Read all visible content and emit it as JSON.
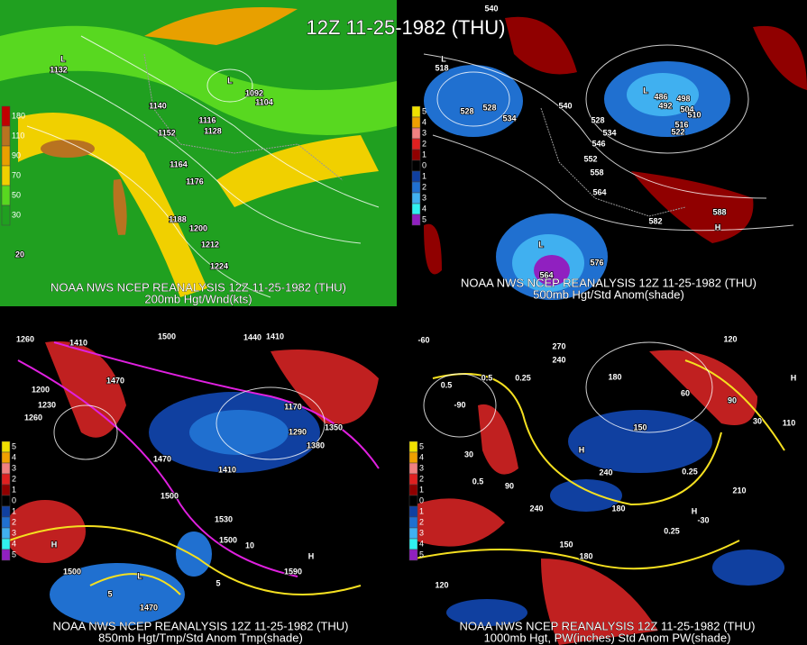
{
  "title": "12Z 11-25-1982 (THU)",
  "panels": [
    {
      "caption": [
        "NOAA NWS NCEP REANALYSIS 12Z 11-25-1982 (THU)",
        "200mb Hgt/Wnd(kts)"
      ],
      "legend": [
        {
          "label": "180",
          "color": "#c00000"
        },
        {
          "label": "110",
          "color": "#b87320"
        },
        {
          "label": "90",
          "color": "#e8a000"
        },
        {
          "label": "70",
          "color": "#f0d000"
        },
        {
          "label": "50",
          "color": "#58d820"
        },
        {
          "label": "30",
          "color": "#20a020"
        }
      ],
      "labels": [
        "L",
        "1132",
        "L",
        "1092",
        "1104",
        "1140",
        "1116",
        "1128",
        "1152",
        "1164",
        "1176",
        "1188",
        "1200",
        "1212",
        "1224",
        "20"
      ]
    },
    {
      "caption": [
        "NOAA NWS NCEP REANALYSIS 12Z 11-25-1982 (THU)",
        "500mb Hgt/Std Anom(shade)"
      ],
      "legend": [
        {
          "label": "5",
          "color": "#f0e000"
        },
        {
          "label": "4",
          "color": "#f0a000"
        },
        {
          "label": "3",
          "color": "#f08080"
        },
        {
          "label": "2",
          "color": "#e02020"
        },
        {
          "label": "1",
          "color": "#900000"
        },
        {
          "label": "0",
          "color": "#000000"
        },
        {
          "label": "1",
          "color": "#1040a0"
        },
        {
          "label": "2",
          "color": "#2070d0"
        },
        {
          "label": "3",
          "color": "#40b0f0"
        },
        {
          "label": "4",
          "color": "#30f0f0"
        },
        {
          "label": "5",
          "color": "#9020c0"
        }
      ],
      "labels": [
        "540",
        "L",
        "518",
        "528",
        "528",
        "534",
        "540",
        "528",
        "534",
        "546",
        "552",
        "558",
        "564",
        "582",
        "588",
        "H",
        "L",
        "486",
        "498",
        "492",
        "504",
        "510",
        "516",
        "522",
        "576",
        "564",
        "L"
      ]
    },
    {
      "caption": [
        "NOAA NWS NCEP REANALYSIS 12Z 11-25-1982 (THU)",
        "850mb Hgt/Tmp/Std Anom Tmp(shade)"
      ],
      "legend": [
        {
          "label": "5",
          "color": "#f0e000"
        },
        {
          "label": "4",
          "color": "#f0a000"
        },
        {
          "label": "3",
          "color": "#f08080"
        },
        {
          "label": "2",
          "color": "#e02020"
        },
        {
          "label": "1",
          "color": "#900000"
        },
        {
          "label": "0",
          "color": "#000000"
        },
        {
          "label": "1",
          "color": "#1040a0"
        },
        {
          "label": "2",
          "color": "#2070d0"
        },
        {
          "label": "3",
          "color": "#40b0f0"
        },
        {
          "label": "4",
          "color": "#30f0f0"
        },
        {
          "label": "5",
          "color": "#9020c0"
        }
      ],
      "labels": [
        "1260",
        "1410",
        "1470",
        "1500",
        "1440",
        "1410",
        "1200",
        "1260",
        "1230",
        "1470",
        "1410",
        "1500",
        "1530",
        "1500",
        "1380",
        "1290",
        "1350",
        "1170",
        "1500",
        "1470",
        "1590",
        "H",
        "H",
        "L",
        "10",
        "5",
        "5"
      ]
    },
    {
      "caption": [
        "NOAA NWS NCEP REANALYSIS 12Z 11-25-1982 (THU)",
        "1000mb Hgt, PW(inches) Std Anom PW(shade)"
      ],
      "legend": [
        {
          "label": "5",
          "color": "#f0e000"
        },
        {
          "label": "4",
          "color": "#f0a000"
        },
        {
          "label": "3",
          "color": "#f08080"
        },
        {
          "label": "2",
          "color": "#e02020"
        },
        {
          "label": "1",
          "color": "#900000"
        },
        {
          "label": "0",
          "color": "#000000"
        },
        {
          "label": "1",
          "color": "#1040a0"
        },
        {
          "label": "2",
          "color": "#2070d0"
        },
        {
          "label": "3",
          "color": "#40b0f0"
        },
        {
          "label": "4",
          "color": "#30f0f0"
        },
        {
          "label": "5",
          "color": "#9020c0"
        }
      ],
      "labels": [
        "-60",
        "270",
        "240",
        "120",
        "180",
        "0.5",
        "0.5",
        "0.25",
        "-90",
        "30",
        "150",
        "240",
        "0.25",
        "H",
        "H",
        "-30",
        "0.5",
        "90",
        "240",
        "180",
        "0.25",
        "210",
        "150",
        "180",
        "120",
        "60",
        "90",
        "30",
        "110",
        "H"
      ]
    }
  ]
}
